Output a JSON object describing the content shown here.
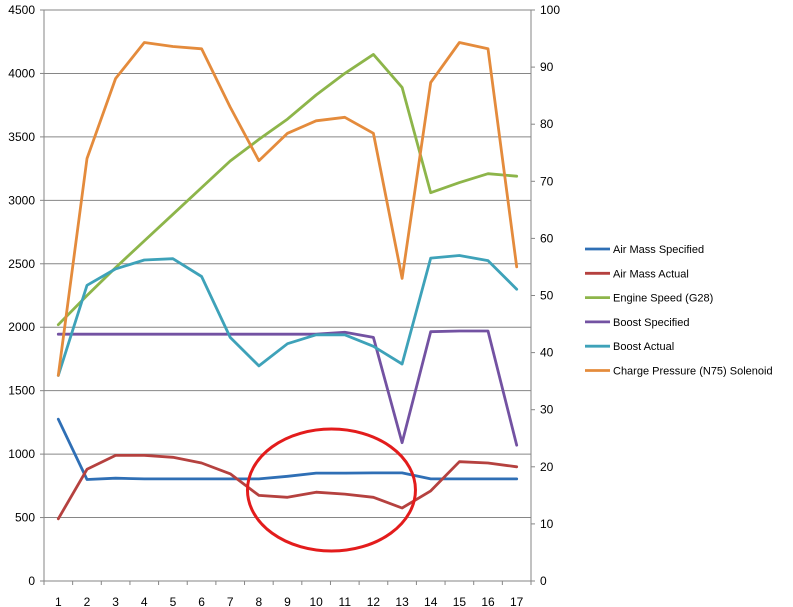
{
  "chart_data": {
    "type": "line",
    "title": "",
    "xlabel": "",
    "ylabel": "",
    "y2label": "",
    "categories": [
      "1",
      "2",
      "3",
      "4",
      "5",
      "6",
      "7",
      "8",
      "9",
      "10",
      "11",
      "12",
      "13",
      "14",
      "15",
      "16",
      "17"
    ],
    "ylim": [
      0,
      4500
    ],
    "yticks": [
      "0",
      "500",
      "1000",
      "1500",
      "2000",
      "2500",
      "3000",
      "3500",
      "4000",
      "4500"
    ],
    "y2lim": [
      0,
      100
    ],
    "y2ticks": [
      "0",
      "10",
      "20",
      "30",
      "40",
      "50",
      "60",
      "70",
      "80",
      "90",
      "100"
    ],
    "grid": true,
    "legend_position": "right",
    "series": [
      {
        "name": "Air Mass Specified",
        "axis": "left",
        "color": "#2f6fb5",
        "values": [
          1275,
          800,
          810,
          805,
          805,
          805,
          805,
          805,
          825,
          850,
          850,
          852,
          852,
          805,
          805,
          805,
          805
        ]
      },
      {
        "name": "Air Mass Actual",
        "axis": "left",
        "color": "#b5413f",
        "values": [
          490,
          880,
          990,
          990,
          975,
          930,
          845,
          675,
          660,
          700,
          685,
          660,
          575,
          710,
          940,
          930,
          900
        ]
      },
      {
        "name": "Engine Speed (G28)",
        "axis": "left",
        "color": "#8db54a",
        "values": [
          2020,
          2250,
          2470,
          2680,
          2890,
          3100,
          3310,
          3480,
          3640,
          3830,
          4000,
          4150,
          3890,
          3060,
          3140,
          3210,
          3190
        ]
      },
      {
        "name": "Boost Specified",
        "axis": "left",
        "color": "#7352a2",
        "values": [
          1945,
          1945,
          1945,
          1945,
          1945,
          1945,
          1945,
          1945,
          1945,
          1945,
          1960,
          1920,
          1090,
          1965,
          1970,
          1970,
          1070
        ]
      },
      {
        "name": "Boost Actual",
        "axis": "left",
        "color": "#3ea2b9",
        "values": [
          1620,
          2330,
          2460,
          2530,
          2540,
          2400,
          1920,
          1695,
          1870,
          1940,
          1940,
          1850,
          1710,
          2545,
          2565,
          2525,
          2300
        ]
      },
      {
        "name": "Charge Pressure (N75) Solenoid",
        "axis": "right",
        "color": "#e48b3c",
        "values": [
          36,
          74,
          88,
          94.3,
          93.6,
          93.2,
          83,
          73.6,
          78.4,
          80.6,
          81.2,
          78.4,
          53,
          87.3,
          94.3,
          93.2,
          55
        ]
      }
    ],
    "annotations": [
      {
        "type": "ellipse",
        "color": "#e31c1c",
        "note": ""
      }
    ]
  }
}
